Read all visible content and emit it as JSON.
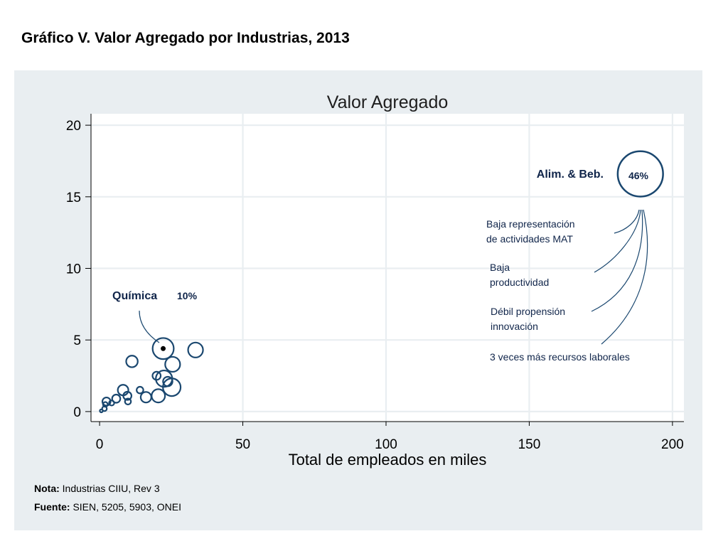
{
  "page": {
    "title": "Gráfico V. Valor Agregado por Industrias, 2013",
    "note_label": "Nota:",
    "note_text": "Industrias CIIU, Rev 3",
    "source_label": "Fuente:",
    "source_text": "SIEN, 5205, 5903, ONEI"
  },
  "colors": {
    "panel_bg": "#e9eef1",
    "plot_bg": "#ffffff",
    "marker": "#1a476f",
    "label": "#10254a",
    "grid": "#e9eef1"
  },
  "chart_data": {
    "type": "scatter",
    "title": "Valor Agregado",
    "xlabel": "Total de empleados en miles",
    "ylabel": "",
    "xlim": [
      -3,
      204
    ],
    "ylim": [
      -0.7,
      20.8
    ],
    "xticks": [
      0,
      50,
      100,
      150,
      200
    ],
    "yticks": [
      0,
      5,
      10,
      15,
      20
    ],
    "grid": true,
    "marker_style": "hollow circles sized by share of value added",
    "points": [
      {
        "x": 188.8,
        "y": 16.6,
        "size": 46,
        "label": "Alim. & Beb.",
        "size_label": "46%"
      },
      {
        "x": 22.2,
        "y": 4.4,
        "size": 10,
        "label": "Química",
        "size_label": "10%"
      },
      {
        "x": 33.5,
        "y": 4.3,
        "size": 5
      },
      {
        "x": 25.5,
        "y": 3.3,
        "size": 5
      },
      {
        "x": 11.3,
        "y": 3.5,
        "size": 3
      },
      {
        "x": 19.9,
        "y": 2.5,
        "size": 1.5
      },
      {
        "x": 22.5,
        "y": 2.3,
        "size": 6
      },
      {
        "x": 23.8,
        "y": 2.1,
        "size": 2
      },
      {
        "x": 25.2,
        "y": 1.7,
        "size": 7
      },
      {
        "x": 20.5,
        "y": 1.1,
        "size": 4
      },
      {
        "x": 8.2,
        "y": 1.5,
        "size": 2.5
      },
      {
        "x": 14.1,
        "y": 1.5,
        "size": 1
      },
      {
        "x": 16.2,
        "y": 1.0,
        "size": 2.5
      },
      {
        "x": 9.7,
        "y": 1.1,
        "size": 1.5
      },
      {
        "x": 9.9,
        "y": 0.7,
        "size": 0.8
      },
      {
        "x": 5.8,
        "y": 0.9,
        "size": 1.5
      },
      {
        "x": 2.4,
        "y": 0.7,
        "size": 1.5
      },
      {
        "x": 4.2,
        "y": 0.6,
        "size": 0.6
      },
      {
        "x": 2.0,
        "y": 0.5,
        "size": 0.5
      },
      {
        "x": 1.7,
        "y": 0.2,
        "size": 0.5
      },
      {
        "x": 0.6,
        "y": 0.05,
        "size": 0.2
      }
    ],
    "annotations": [
      {
        "text": "Baja representación\nde actividades MAT"
      },
      {
        "text": "Baja\nproductividad"
      },
      {
        "text": "Débil propensión\ninnovación"
      },
      {
        "text": "3 veces más recursos laborales"
      }
    ]
  }
}
